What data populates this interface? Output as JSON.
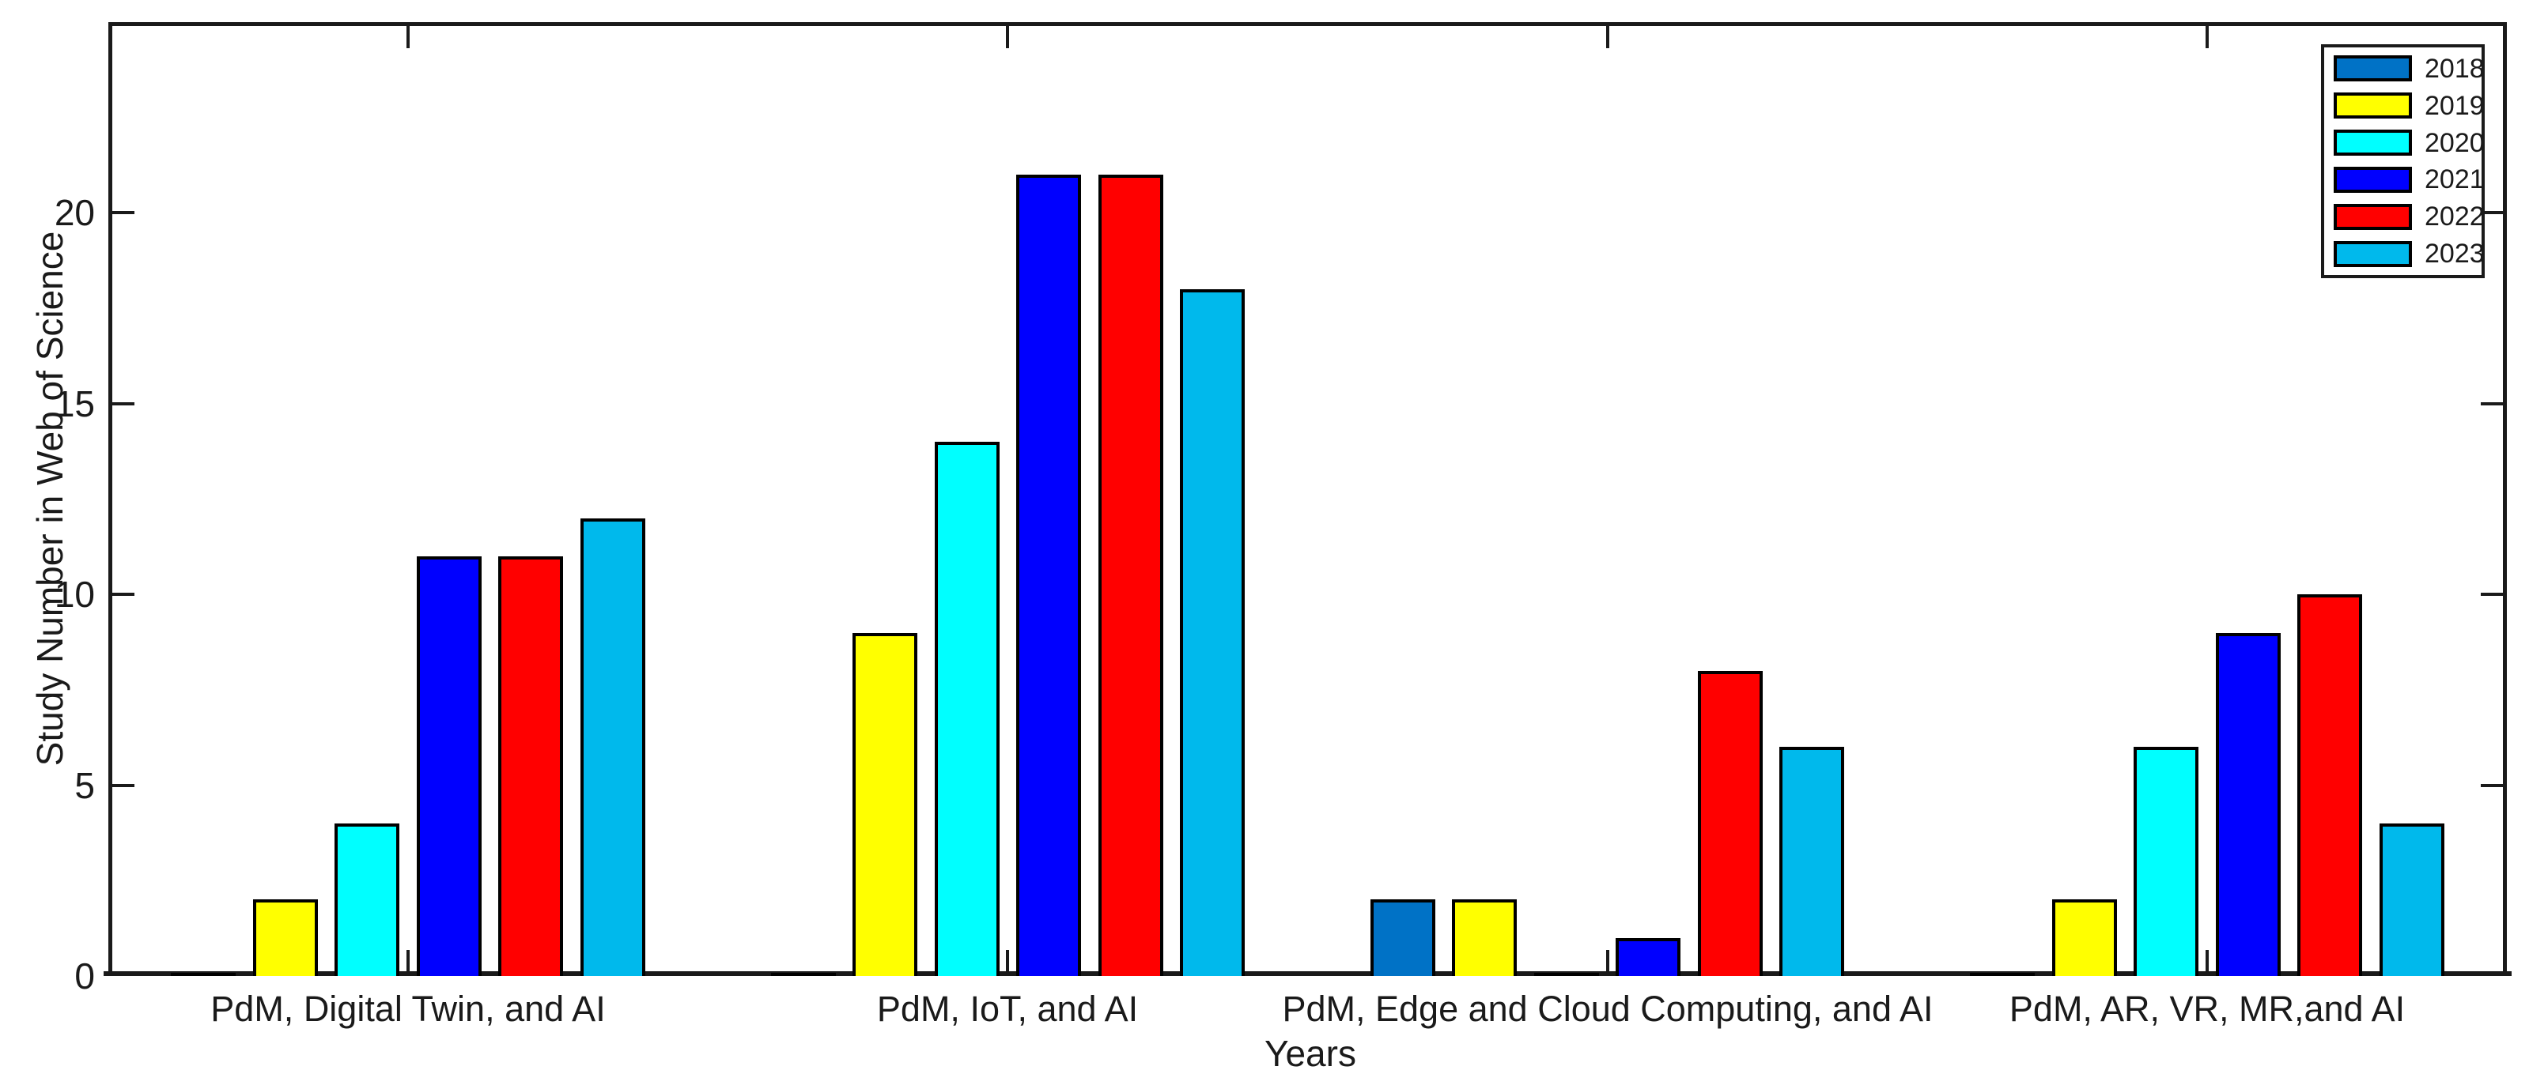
{
  "figure": {
    "background": "#ffffff",
    "axis_color": "#1a1a1a",
    "bar_outline_color": "#000000"
  },
  "chart_data": {
    "type": "bar",
    "grouped": true,
    "title": "",
    "xlabel": "Years",
    "ylabel": "Study Number in Web of Science",
    "ylim": [
      0,
      25
    ],
    "yticks": [
      0,
      5,
      10,
      15,
      20
    ],
    "grid": false,
    "legend_position": "top-right",
    "categories": [
      "PdM, Digital Twin, and AI",
      "PdM, IoT, and AI",
      "PdM, Edge and Cloud Computing, and AI",
      "PdM, AR, VR, MR,and AI"
    ],
    "series": [
      {
        "name": "2018",
        "color": "#0072C6",
        "values": [
          0,
          0,
          2,
          0
        ]
      },
      {
        "name": "2019",
        "color": "#FFFF00",
        "values": [
          2,
          9,
          2,
          2
        ]
      },
      {
        "name": "2020",
        "color": "#00FFFF",
        "values": [
          4,
          14,
          0,
          6
        ]
      },
      {
        "name": "2021",
        "color": "#0000FF",
        "values": [
          11,
          21,
          1,
          9
        ]
      },
      {
        "name": "2022",
        "color": "#FF0000",
        "values": [
          11,
          21,
          8,
          10
        ]
      },
      {
        "name": "2023",
        "color": "#00B9EC",
        "values": [
          12,
          18,
          6,
          4
        ]
      }
    ]
  }
}
